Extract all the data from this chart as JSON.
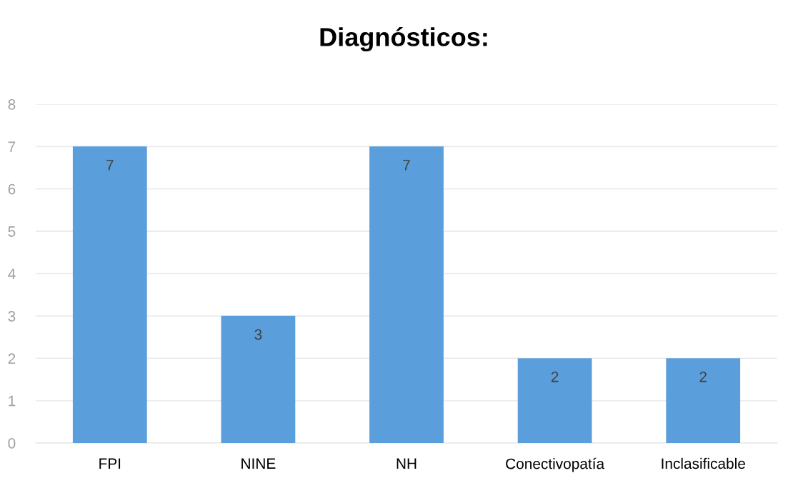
{
  "chart_data": {
    "type": "bar",
    "title": "Diagnósticos:",
    "categories": [
      "FPI",
      "NINE",
      "NH",
      "Conectivopatía",
      "Inclasificable"
    ],
    "values": [
      7,
      3,
      7,
      2,
      2
    ],
    "color": "#5a9edb",
    "ylim": [
      0,
      8
    ],
    "yticks": [
      0,
      1,
      2,
      3,
      4,
      5,
      6,
      7,
      8
    ],
    "grid": "y",
    "data_labels": true
  }
}
